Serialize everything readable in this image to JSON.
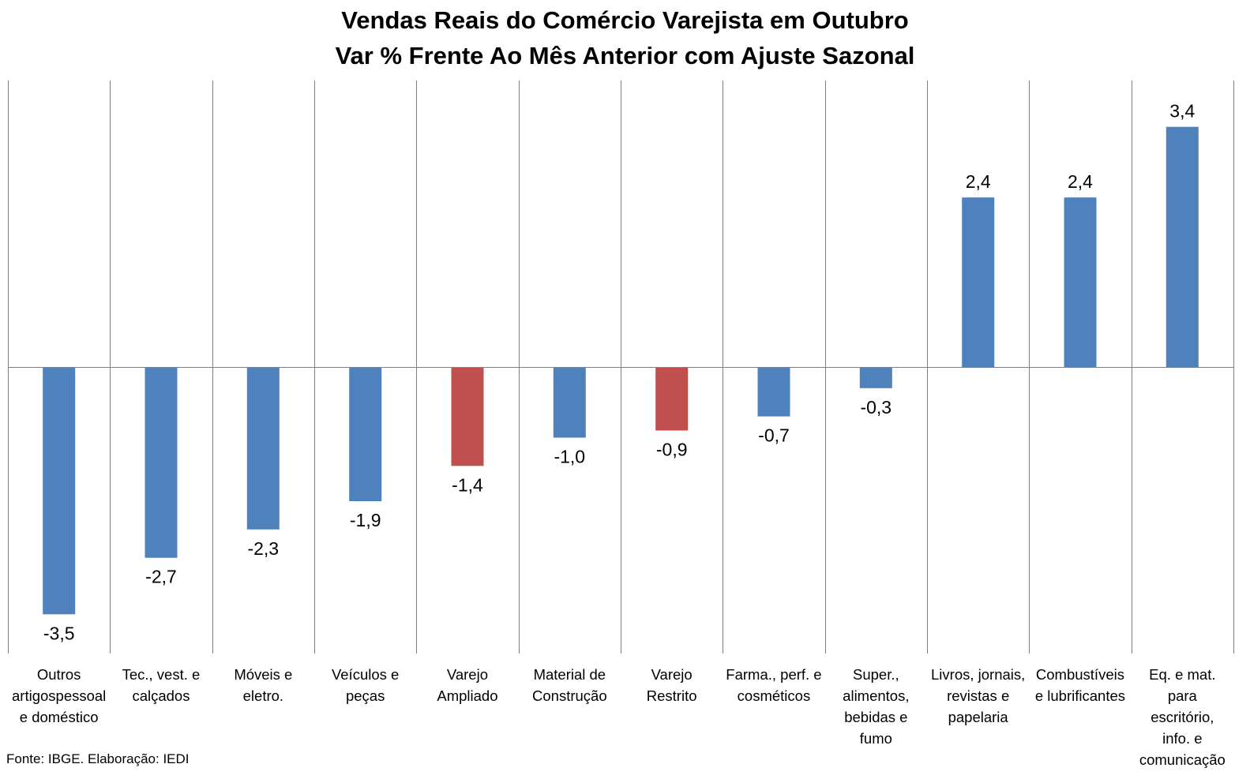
{
  "chart_data": {
    "type": "bar",
    "title": "Vendas Reais do Comércio Varejista em Outubro",
    "subtitle": "Var % Frente Ao Mês Anterior com Ajuste Sazonal",
    "categories": [
      "Outros artigospessoal e doméstico",
      "Tec., vest. e calçados",
      "Móveis e eletro.",
      "Veículos e peças",
      "Varejo Ampliado",
      "Material de Construção",
      "Varejo Restrito",
      "Farma., perf. e cosméticos",
      "Super., alimentos, bebidas e fumo",
      "Livros, jornais, revistas e papelaria",
      "Combustíveis e lubrificantes",
      "Eq. e mat. para escritório, info. e comunicação"
    ],
    "category_lines": [
      "Outros\nartigospessoal\ne doméstico",
      "Tec., vest. e\ncalçados",
      "Móveis e\neletro.",
      "Veículos e\npeças",
      "Varejo\nAmpliado",
      "Material de\nConstrução",
      "Varejo\nRestrito",
      "Farma., perf. e\ncosméticos",
      "Super.,\nalimentos,\nbebidas e\nfumo",
      "Livros, jornais,\nrevistas e\npapelaria",
      "Combustíveis\ne lubrificantes",
      "Eq. e mat.\npara\nescritório,\ninfo. e\ncomunicação"
    ],
    "values": [
      -3.5,
      -2.7,
      -2.3,
      -1.9,
      -1.4,
      -1.0,
      -0.9,
      -0.7,
      -0.3,
      2.4,
      2.4,
      3.4
    ],
    "value_labels": [
      "-3,5",
      "-2,7",
      "-2,3",
      "-1,9",
      "-1,4",
      "-1,0",
      "-0,9",
      "-0,7",
      "-0,3",
      "2,4",
      "2,4",
      "3,4"
    ],
    "colors": [
      "#4f81bd",
      "#4f81bd",
      "#4f81bd",
      "#4f81bd",
      "#c0504d",
      "#4f81bd",
      "#c0504d",
      "#4f81bd",
      "#4f81bd",
      "#4f81bd",
      "#4f81bd",
      "#4f81bd"
    ],
    "gridlines": "vertical separators between categories",
    "axis_color": "#808080",
    "xlabel": "",
    "ylabel": ""
  },
  "source_text": "Fonte: IBGE. Elaboração: IEDI"
}
